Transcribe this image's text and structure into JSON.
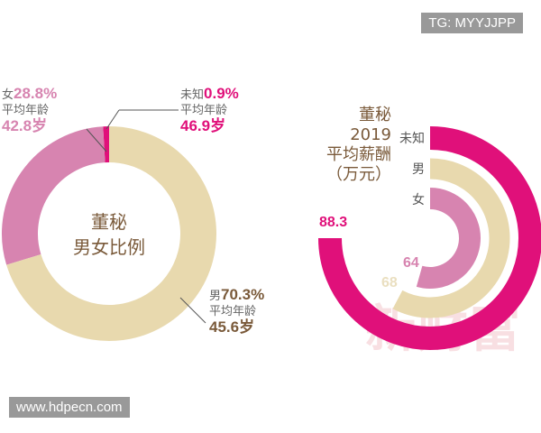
{
  "watermark_top": "TG: MYYJJPP",
  "watermark_bottom": "www.hdpecn.com",
  "background_watermark": "新财富",
  "chart_data": [
    {
      "type": "pie",
      "title_line1": "董秘",
      "title_line2": "男女比例",
      "avg_age_label": "平均年龄",
      "slices": [
        {
          "name": "男",
          "value": 70.3,
          "value_label": "70.3%",
          "avg_age": "45.6岁",
          "color": "#e8d9ae"
        },
        {
          "name": "女",
          "value": 28.8,
          "value_label": "28.8%",
          "avg_age": "42.8岁",
          "color": "#d784b0"
        },
        {
          "name": "未知",
          "value": 0.9,
          "value_label": "0.9%",
          "avg_age": "46.9岁",
          "color": "#e0107a"
        }
      ]
    },
    {
      "type": "radial-bar",
      "title_lines": [
        "董秘",
        "2019",
        "平均薪酬",
        "（万元）"
      ],
      "max": 88.3,
      "series": [
        {
          "name": "未知",
          "value": 88.3,
          "value_label": "88.3",
          "color": "#e0107a"
        },
        {
          "name": "男",
          "value": 68,
          "value_label": "68",
          "color": "#e8d9ae"
        },
        {
          "name": "女",
          "value": 64,
          "value_label": "64",
          "color": "#d784b0"
        }
      ]
    }
  ]
}
